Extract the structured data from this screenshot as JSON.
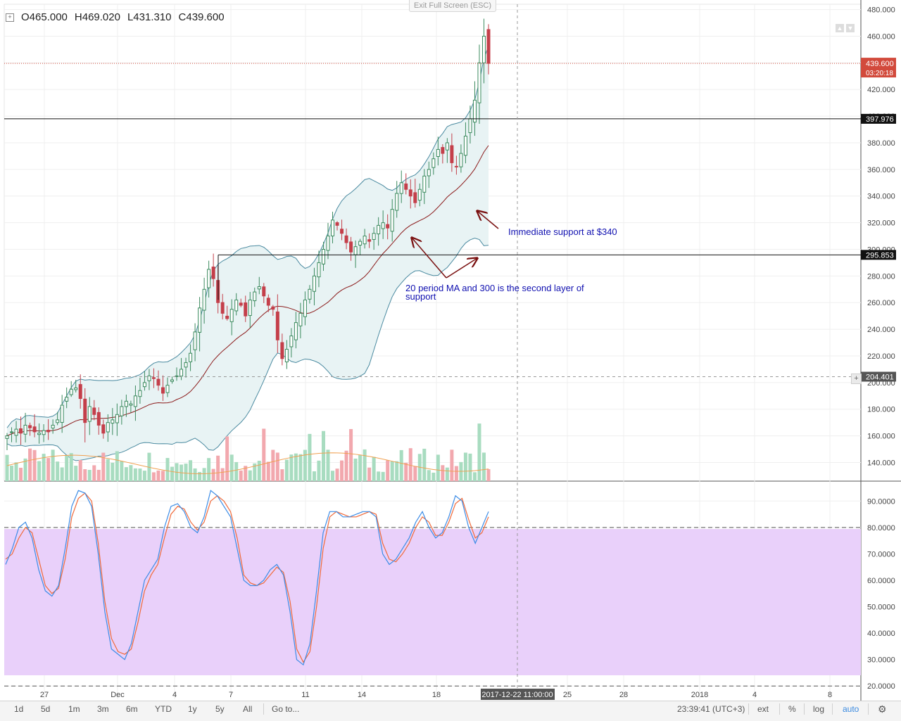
{
  "ohlc": {
    "open": "O465.000",
    "high": "H469.020",
    "low": "L431.310",
    "close": "C439.600"
  },
  "exit_fullscreen": "Exit Full Screen (ESC)",
  "colors": {
    "up": "#3b8a5e",
    "down": "#c43f4a",
    "ma": "#8b1a1a",
    "band": "#4a8aa0",
    "band_fill": "#e8f3f4",
    "vol_up": "#a8dcc0",
    "vol_down": "#f2a8ae",
    "vol_ma": "#f0a050",
    "stoch_k": "#3c8ce6",
    "stoch_d": "#f06a3a",
    "stoch_zone": "#e9d0fa",
    "annotation": "#1010b0",
    "arrow": "#7a1010",
    "price_label": "#d24a3c"
  },
  "chart_data": [
    {
      "type": "candlestick",
      "ylim": [
        126,
        484
      ],
      "price_ticks": [
        "140.000",
        "160.000",
        "180.000",
        "200.000",
        "220.000",
        "240.000",
        "260.000",
        "280.000",
        "300.000",
        "320.000",
        "340.000",
        "360.000",
        "380.000",
        "400.000",
        "420.000",
        "440.000",
        "460.000",
        "480.000"
      ],
      "x_ticks": [
        "27",
        "Dec",
        "4",
        "7",
        "11",
        "14",
        "18",
        "2017-12-22 11:00:00",
        "25",
        "28",
        "2018",
        "4",
        "8"
      ],
      "close_series": [
        160,
        163,
        165,
        162,
        168,
        166,
        163,
        162,
        164,
        163,
        168,
        172,
        183,
        189,
        195,
        196,
        188,
        170,
        182,
        176,
        168,
        162,
        170,
        172,
        176,
        182,
        186,
        184,
        190,
        194,
        200,
        205,
        203,
        198,
        192,
        198,
        202,
        205,
        210,
        215,
        222,
        238,
        256,
        270,
        285,
        278,
        260,
        252,
        248,
        255,
        262,
        258,
        250,
        262,
        268,
        272,
        265,
        258,
        255,
        232,
        218,
        225,
        235,
        245,
        252,
        262,
        270,
        280,
        290,
        300,
        310,
        322,
        318,
        312,
        305,
        298,
        302,
        306,
        310,
        306,
        312,
        318,
        320,
        316,
        330,
        342,
        350,
        345,
        340,
        335,
        345,
        355,
        360,
        368,
        375,
        372,
        380,
        365,
        362,
        372,
        385,
        398,
        412,
        440,
        460,
        439.6
      ],
      "support_levels": [
        {
          "value": 397.976,
          "label": "397.976"
        },
        {
          "value": 295.853,
          "label": "295.853"
        }
      ],
      "current_price": {
        "value": 439.6,
        "label": "439.600",
        "countdown": "03:20:18"
      },
      "crosshair": {
        "value": 204.401,
        "label": "204.401",
        "time": "2017-12-22 11:00:00"
      },
      "annotations": [
        {
          "text": "Immediate support at $340"
        },
        {
          "text": "20 period MA and 300 is the second layer of",
          "text2": "support"
        }
      ]
    },
    {
      "type": "line",
      "title": "",
      "ylim": [
        15,
        97
      ],
      "ticks": [
        "20.0000",
        "30.0000",
        "40.0000",
        "50.0000",
        "60.0000",
        "70.0000",
        "80.0000",
        "90.0000"
      ],
      "levels": [
        20,
        80
      ],
      "k": [
        66,
        72,
        80,
        82,
        76,
        64,
        56,
        54,
        58,
        72,
        88,
        94,
        93,
        88,
        70,
        48,
        34,
        32,
        30,
        36,
        48,
        60,
        64,
        68,
        80,
        88,
        89,
        86,
        80,
        78,
        84,
        94,
        92,
        88,
        84,
        72,
        60,
        58,
        58,
        60,
        64,
        66,
        62,
        48,
        30,
        28,
        36,
        56,
        78,
        86,
        86,
        84,
        84,
        85,
        86,
        86,
        84,
        70,
        66,
        68,
        72,
        76,
        82,
        86,
        80,
        76,
        78,
        84,
        92,
        90,
        80,
        74,
        80,
        86
      ],
      "d": [
        68,
        70,
        76,
        80,
        78,
        68,
        58,
        55,
        57,
        68,
        84,
        91,
        93,
        90,
        74,
        52,
        38,
        33,
        32,
        34,
        44,
        56,
        62,
        66,
        76,
        85,
        88,
        87,
        82,
        79,
        82,
        90,
        92,
        90,
        86,
        76,
        62,
        59,
        58,
        59,
        62,
        65,
        63,
        52,
        34,
        29,
        33,
        50,
        72,
        84,
        86,
        85,
        84,
        84,
        85,
        86,
        85,
        74,
        68,
        67,
        70,
        74,
        80,
        84,
        82,
        77,
        77,
        82,
        89,
        91,
        83,
        76,
        78,
        84
      ]
    }
  ],
  "timeframes": [
    "1d",
    "5d",
    "1m",
    "3m",
    "6m",
    "YTD",
    "1y",
    "5y",
    "All"
  ],
  "goto": "Go to...",
  "clock": "23:39:41 (UTC+3)",
  "right_tools": [
    "ext",
    "%",
    "log",
    "auto"
  ]
}
